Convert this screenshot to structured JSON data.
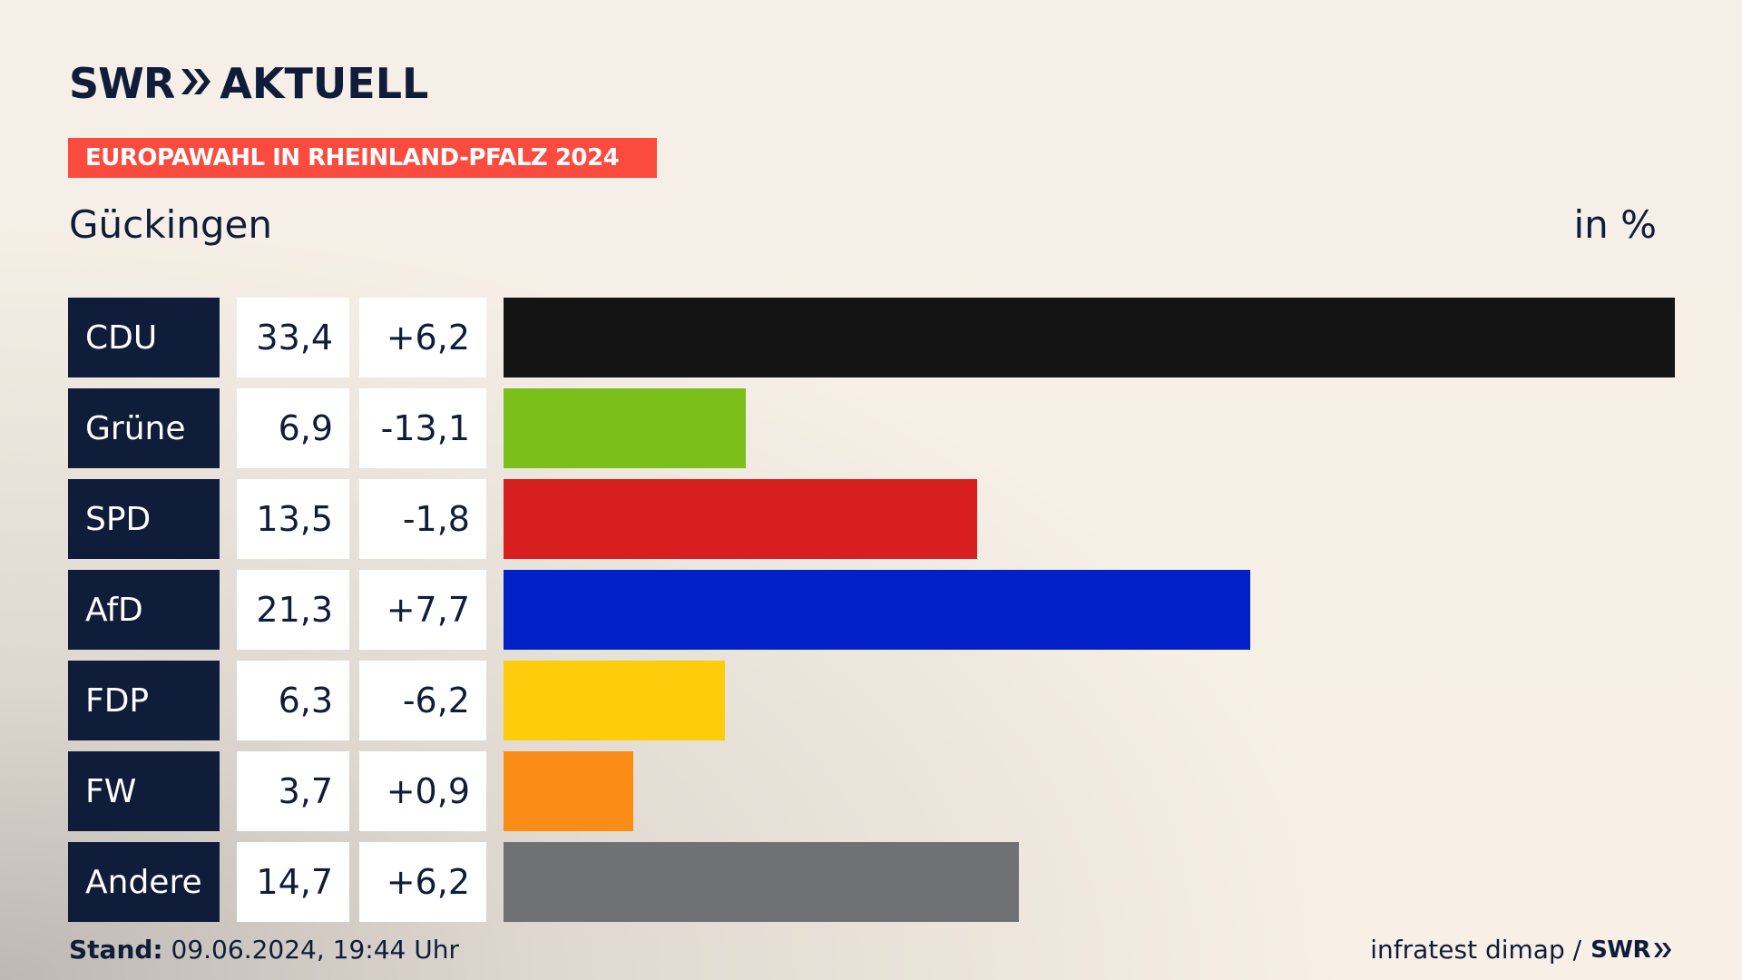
{
  "logo": {
    "brand": "SWR",
    "product": "AKTUELL"
  },
  "banner": "EUROPAWAHL IN RHEINLAND-PFALZ 2024",
  "subtitle": "Gückingen",
  "unit": "in %",
  "chart_data": {
    "type": "bar",
    "orientation": "horizontal",
    "title": "EUROPAWAHL IN RHEINLAND-PFALZ 2024",
    "subtitle": "Gückingen",
    "unit": "in %",
    "categories": [
      "CDU",
      "Grüne",
      "SPD",
      "AfD",
      "FDP",
      "FW",
      "Andere"
    ],
    "values": [
      33.4,
      6.9,
      13.5,
      21.3,
      6.3,
      3.7,
      14.7
    ],
    "value_labels": [
      "33,4",
      "6,9",
      "13,5",
      "21,3",
      "6,3",
      "3,7",
      "14,7"
    ],
    "change_labels": [
      "+6,2",
      "-13,1",
      "-1,8",
      "+7,7",
      "-6,2",
      "+0,9",
      "+6,2"
    ],
    "colors": [
      "#141414",
      "#7bbf1b",
      "#d81f1f",
      "#0020c8",
      "#fdcc0a",
      "#fb8c16",
      "#707173"
    ],
    "xlim": [
      0,
      33.4
    ],
    "grid": false,
    "legend": "none"
  },
  "footer": {
    "stand_label": "Stand:",
    "stand_value": "09.06.2024, 19:44 Uhr",
    "source": "infratest dimap /",
    "source_brand": "SWR"
  }
}
